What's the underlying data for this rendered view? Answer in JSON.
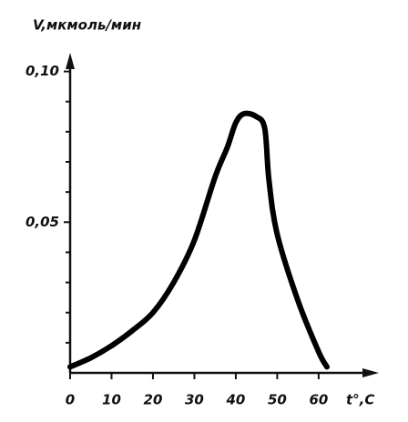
{
  "chart_data": {
    "type": "line",
    "y_label": "V,мкмоль/мин",
    "x_label": "t°,C",
    "x": [
      0,
      5,
      10,
      15,
      20,
      25,
      30,
      35,
      38,
      40,
      42,
      45,
      47,
      48,
      50,
      55,
      60,
      62
    ],
    "series": [
      {
        "color": "#000000",
        "values": [
          0.002,
          0.005,
          0.009,
          0.014,
          0.02,
          0.03,
          0.044,
          0.065,
          0.075,
          0.083,
          0.086,
          0.085,
          0.081,
          0.064,
          0.046,
          0.024,
          0.007,
          0.002
        ]
      }
    ],
    "xlim": [
      0,
      73
    ],
    "ylim": [
      0,
      0.105
    ],
    "xticks": [
      0,
      10,
      20,
      30,
      40,
      50,
      60
    ],
    "yticks": [
      {
        "value": 0.05,
        "label": "0,05"
      },
      {
        "value": 0.1,
        "label": "0,10"
      }
    ],
    "y_minor_ticks": [
      0.01,
      0.02,
      0.03,
      0.04,
      0.06,
      0.07,
      0.08,
      0.09
    ]
  }
}
